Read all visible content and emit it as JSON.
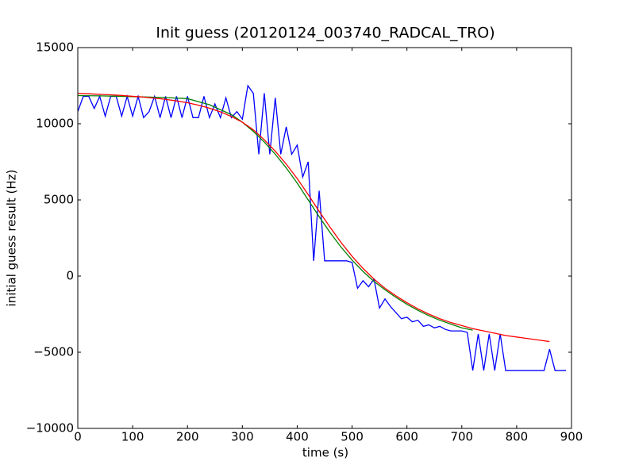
{
  "chart_data": {
    "type": "line",
    "title": "Init guess (20120124_003740_RADCAL_TRO)",
    "xlabel": "time (s)",
    "ylabel": "initial guess result (Hz)",
    "xlim": [
      0,
      900
    ],
    "xticks": [
      0,
      100,
      200,
      300,
      400,
      500,
      600,
      700,
      800,
      900
    ],
    "ylim": [
      -10000,
      15000
    ],
    "yticks": [
      {
        "value": -10000,
        "label": "−10000"
      },
      {
        "value": -5000,
        "label": "−5000"
      },
      0,
      5000,
      10000,
      15000
    ],
    "series": [
      {
        "color": "#0000ff",
        "x": [
          0,
          10,
          20,
          30,
          40,
          50,
          60,
          70,
          80,
          90,
          100,
          110,
          120,
          130,
          140,
          150,
          160,
          170,
          180,
          190,
          200,
          210,
          220,
          230,
          240,
          250,
          260,
          270,
          280,
          290,
          300,
          310,
          320,
          330,
          340,
          350,
          360,
          370,
          380,
          390,
          400,
          410,
          420,
          430,
          440,
          450,
          460,
          470,
          480,
          490,
          500,
          510,
          520,
          530,
          540,
          550,
          560,
          570,
          580,
          590,
          600,
          610,
          620,
          630,
          640,
          650,
          660,
          670,
          680,
          690,
          700,
          710,
          720,
          730,
          740,
          750,
          760,
          770,
          780,
          790,
          800,
          810,
          820,
          830,
          840,
          850,
          860,
          870,
          880,
          890
        ],
        "values": [
          10800,
          11800,
          11800,
          11000,
          11800,
          10500,
          11800,
          11800,
          10500,
          11800,
          10500,
          11800,
          10400,
          10800,
          11800,
          10400,
          11800,
          10400,
          11800,
          10400,
          11800,
          10400,
          10400,
          11800,
          10400,
          11300,
          10400,
          11700,
          10400,
          10800,
          10300,
          12500,
          12000,
          8000,
          12000,
          8000,
          11700,
          8000,
          9800,
          8000,
          8600,
          6500,
          7500,
          1000,
          5600,
          1000,
          1000,
          1000,
          1000,
          1000,
          900,
          -800,
          -300,
          -700,
          -200,
          -2100,
          -1500,
          -2000,
          -2400,
          -2800,
          -2700,
          -3000,
          -2900,
          -3300,
          -3200,
          -3400,
          -3300,
          -3500,
          -3600,
          -3600,
          -3600,
          -3700,
          -6200,
          -3800,
          -6200,
          -3800,
          -6200,
          -3800,
          -6200,
          -6200,
          -6200,
          -6200,
          -6200,
          -6200,
          -6200,
          -6200,
          -4800,
          -6200,
          -6200,
          -6200
        ]
      },
      {
        "color": "#008000",
        "x": [
          0,
          40,
          80,
          120,
          160,
          200,
          240,
          280,
          300,
          320,
          340,
          360,
          380,
          400,
          420,
          440,
          460,
          480,
          500,
          520,
          540,
          560,
          580,
          600,
          620,
          640,
          660,
          680,
          700,
          720
        ],
        "values": [
          11850,
          11830,
          11800,
          11760,
          11720,
          11650,
          11250,
          10600,
          10100,
          9500,
          8800,
          8000,
          7100,
          6100,
          5000,
          3900,
          2850,
          1900,
          1050,
          300,
          -350,
          -900,
          -1400,
          -1850,
          -2250,
          -2600,
          -2900,
          -3150,
          -3400,
          -3550
        ]
      },
      {
        "color": "#ff0000",
        "x": [
          0,
          20,
          40,
          60,
          80,
          100,
          120,
          140,
          160,
          180,
          200,
          220,
          240,
          260,
          280,
          300,
          320,
          340,
          360,
          380,
          400,
          420,
          440,
          460,
          480,
          500,
          520,
          540,
          560,
          580,
          600,
          620,
          640,
          660,
          680,
          700,
          720,
          740,
          760,
          780,
          800,
          820,
          840,
          860
        ],
        "values": [
          12000,
          11970,
          11930,
          11900,
          11860,
          11800,
          11750,
          11680,
          11600,
          11500,
          11380,
          11220,
          11020,
          10780,
          10480,
          10100,
          9600,
          8950,
          8200,
          7350,
          6400,
          5350,
          4250,
          3200,
          2200,
          1300,
          500,
          -200,
          -800,
          -1300,
          -1750,
          -2150,
          -2500,
          -2800,
          -3050,
          -3250,
          -3450,
          -3600,
          -3750,
          -3900,
          -4000,
          -4100,
          -4200,
          -4300
        ]
      }
    ]
  }
}
